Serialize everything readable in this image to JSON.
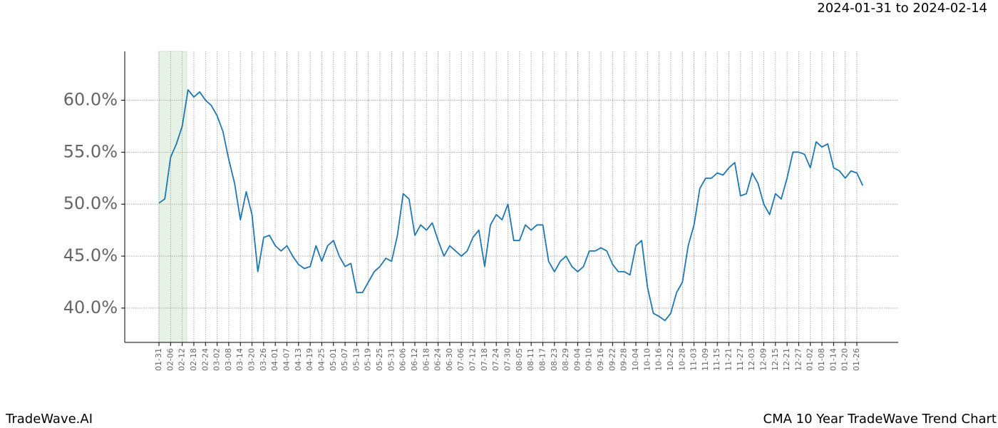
{
  "chart_data": {
    "type": "line",
    "title": "CMA 10 Year TradeWave Trend Chart",
    "subtitle": "2024-01-31 to 2024-02-14",
    "brand": "TradeWave.AI",
    "categories": [
      "01-31",
      null,
      "02-06",
      null,
      "02-12",
      null,
      "02-18",
      null,
      "02-24",
      null,
      "03-02",
      null,
      "03-08",
      null,
      "03-14",
      null,
      "03-20",
      null,
      "03-26",
      null,
      "04-01",
      null,
      "04-07",
      null,
      "04-13",
      null,
      "04-19",
      null,
      "04-25",
      null,
      "05-01",
      null,
      "05-07",
      null,
      "05-13",
      null,
      "05-19",
      null,
      "05-25",
      null,
      "05-31",
      null,
      "06-06",
      null,
      "06-12",
      null,
      "06-18",
      null,
      "06-24",
      null,
      "06-30",
      null,
      "07-06",
      null,
      "07-12",
      null,
      "07-18",
      null,
      "07-24",
      null,
      "07-30",
      null,
      "08-05",
      null,
      "08-11",
      null,
      "08-17",
      null,
      "08-23",
      null,
      "08-29",
      null,
      "09-04",
      null,
      "09-10",
      null,
      "09-16",
      null,
      "09-22",
      null,
      "09-28",
      null,
      "10-04",
      null,
      "10-10",
      null,
      "10-16",
      null,
      "10-22",
      null,
      "10-28",
      null,
      "11-03",
      null,
      "11-09",
      null,
      "11-15",
      null,
      "11-21",
      null,
      "11-27",
      null,
      "12-03",
      null,
      "12-09",
      null,
      "12-15",
      null,
      "12-21",
      null,
      "12-27",
      null,
      "01-02",
      null,
      "01-08",
      null,
      "01-14",
      null,
      "01-20",
      null,
      "01-26",
      null
    ],
    "series": [
      {
        "name": "CMA",
        "color": "#1f77b4",
        "values": [
          50.1,
          50.5,
          54.5,
          55.8,
          57.5,
          61,
          60.3,
          60.8,
          60,
          59.5,
          58.5,
          57,
          54.3,
          52,
          48.5,
          51.2,
          49,
          43.5,
          46.8,
          47,
          46,
          45.5,
          46,
          45,
          44.2,
          43.8,
          44,
          46,
          44.5,
          46,
          46.5,
          45,
          44,
          44.3,
          41.5,
          41.5,
          42.5,
          43.5,
          44,
          44.8,
          44.5,
          47,
          51,
          50.5,
          47,
          48,
          47.5,
          48.2,
          46.5,
          45,
          46,
          45.5,
          45,
          45.5,
          46.8,
          47.5,
          44,
          48,
          49,
          48.5,
          50,
          46.5,
          46.5,
          48,
          47.5,
          48,
          48,
          44.5,
          43.5,
          44.5,
          45,
          44,
          43.5,
          44,
          45.5,
          45.5,
          45.8,
          45.5,
          44.2,
          43.5,
          43.5,
          43.2,
          46,
          46.5,
          42,
          39.5,
          39.2,
          38.8,
          39.5,
          41.5,
          42.5,
          46,
          48,
          51.5,
          52.5,
          52.5,
          53,
          52.8,
          53.5,
          54,
          50.8,
          51,
          53,
          52,
          50,
          49,
          51,
          50.5,
          52.5,
          55,
          55,
          54.8,
          53.5,
          56,
          55.5,
          55.8,
          53.5,
          53.2,
          52.5,
          53.2,
          53,
          51.8
        ]
      }
    ],
    "ylim": [
      36.7,
      64.7
    ],
    "yticks": [
      {
        "value": 40,
        "label": "40.0%"
      },
      {
        "value": 45,
        "label": "45.0%"
      },
      {
        "value": 50,
        "label": "50.0%"
      },
      {
        "value": 55,
        "label": "55.0%"
      },
      {
        "value": 60,
        "label": "60.0%"
      }
    ],
    "grid": true
  }
}
